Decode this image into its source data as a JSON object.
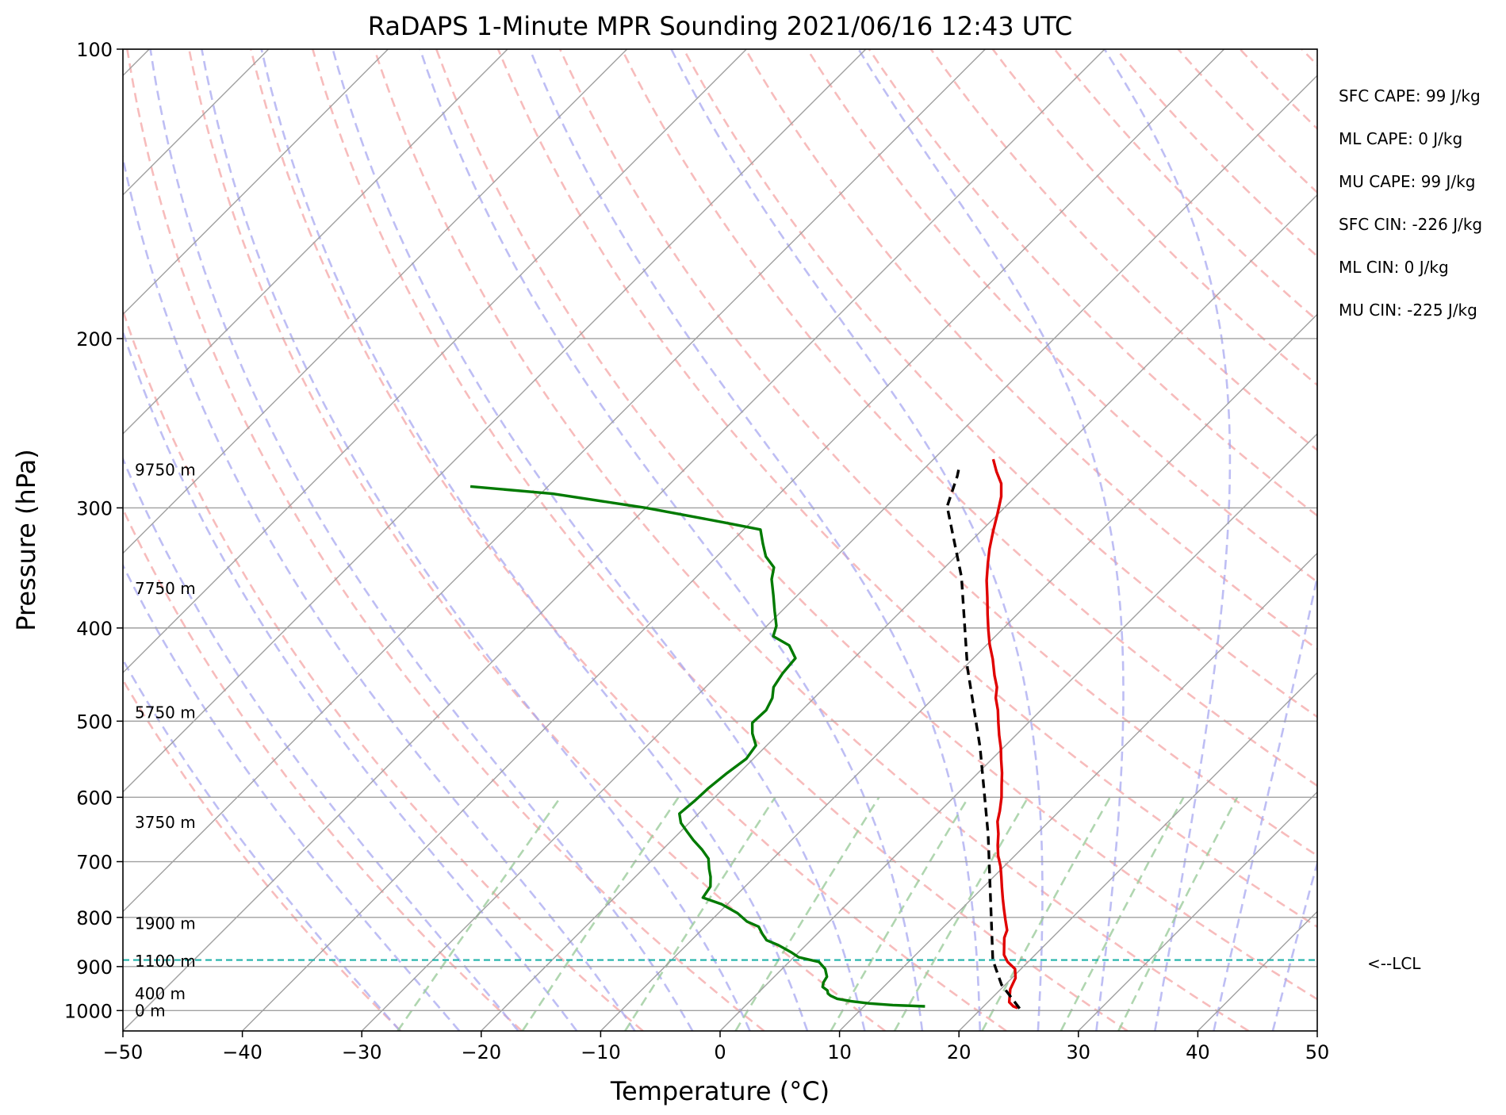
{
  "chart_data": {
    "type": "skew-t",
    "title": "RaDAPS 1-Minute MPR Sounding 2021/06/16 12:43 UTC",
    "xlabel": "Temperature (°C)",
    "ylabel": "Pressure (hPa)",
    "xlim": [
      -50,
      50
    ],
    "ylim": [
      1050,
      100
    ],
    "y_scale": "log",
    "x_ticks": [
      -50,
      -40,
      -30,
      -20,
      -10,
      0,
      10,
      20,
      30,
      40,
      50
    ],
    "x_tick_labels": [
      "−50",
      "−40",
      "−30",
      "−20",
      "−10",
      "0",
      "10",
      "20",
      "30",
      "40",
      "50"
    ],
    "y_ticks": [
      100,
      200,
      300,
      400,
      500,
      600,
      700,
      800,
      900,
      1000
    ],
    "y_tick_labels": [
      "100",
      "200",
      "300",
      "400",
      "500",
      "600",
      "700",
      "800",
      "900",
      "1000"
    ],
    "grid": true,
    "isotherms_skewed": true,
    "background_lines": {
      "dry_adiabats": "dashed light red",
      "moist_adiabats": "dashed light blue",
      "mixing_ratio_lines": "dashed light green"
    },
    "colors": {
      "temperature": "#e00000",
      "dewpoint": "#007a00",
      "parcel": "#000000",
      "lcl": "#20b2aa",
      "dry_adiabat": "#f4a0a0",
      "moist_adiabat": "#a8a8f0",
      "mixing_ratio": "#9ccc9c",
      "isotherm": "#a0a0a0"
    },
    "series": [
      {
        "name": "Temperature",
        "points": [
          [
            23.0,
            994
          ],
          [
            22.5,
            990
          ],
          [
            21.8,
            980
          ],
          [
            21.3,
            965
          ],
          [
            20.8,
            950
          ],
          [
            20.3,
            925
          ],
          [
            19.5,
            905
          ],
          [
            18.3,
            890
          ],
          [
            17.4,
            875
          ],
          [
            16.6,
            855
          ],
          [
            16.0,
            840
          ],
          [
            15.6,
            825
          ],
          [
            14.6,
            805
          ],
          [
            13.6,
            785
          ],
          [
            12.6,
            765
          ],
          [
            11.6,
            745
          ],
          [
            10.6,
            725
          ],
          [
            9.7,
            708
          ],
          [
            8.6,
            690
          ],
          [
            7.7,
            673
          ],
          [
            6.8,
            655
          ],
          [
            5.7,
            636
          ],
          [
            5.0,
            620
          ],
          [
            4.0,
            600
          ],
          [
            3.0,
            583
          ],
          [
            2.0,
            566
          ],
          [
            0.8,
            548
          ],
          [
            -0.2,
            533
          ],
          [
            -1.4,
            517
          ],
          [
            -2.5,
            502
          ],
          [
            -3.6,
            487
          ],
          [
            -4.8,
            473
          ],
          [
            -5.6,
            461
          ],
          [
            -6.8,
            448
          ],
          [
            -8.3,
            431
          ],
          [
            -9.8,
            416
          ],
          [
            -11.1,
            402
          ],
          [
            -12.5,
            387
          ],
          [
            -13.9,
            372
          ],
          [
            -15.4,
            357
          ],
          [
            -16.7,
            343
          ],
          [
            -17.8,
            331
          ],
          [
            -19.0,
            317
          ],
          [
            -20.1,
            304
          ],
          [
            -21.2,
            292
          ],
          [
            -22.3,
            283
          ],
          [
            -23.7,
            275
          ],
          [
            -25.0,
            267
          ]
        ]
      },
      {
        "name": "Dewpoint",
        "points": [
          [
            15.1,
            990
          ],
          [
            12.3,
            987
          ],
          [
            10.2,
            983
          ],
          [
            8.5,
            978
          ],
          [
            7.1,
            972
          ],
          [
            6.3,
            965
          ],
          [
            5.9,
            960
          ],
          [
            5.6,
            953
          ],
          [
            4.9,
            945
          ],
          [
            4.6,
            935
          ],
          [
            4.4,
            922
          ],
          [
            3.6,
            905
          ],
          [
            2.5,
            890
          ],
          [
            0.4,
            880
          ],
          [
            -0.6,
            870
          ],
          [
            -2.3,
            855
          ],
          [
            -3.7,
            845
          ],
          [
            -4.6,
            832
          ],
          [
            -5.5,
            818
          ],
          [
            -6.9,
            808
          ],
          [
            -8.4,
            792
          ],
          [
            -10.5,
            775
          ],
          [
            -12.6,
            763
          ],
          [
            -12.9,
            743
          ],
          [
            -13.7,
            726
          ],
          [
            -14.5,
            712
          ],
          [
            -15.4,
            695
          ],
          [
            -16.7,
            680
          ],
          [
            -18.2,
            665
          ],
          [
            -19.4,
            652
          ],
          [
            -20.7,
            638
          ],
          [
            -21.6,
            624
          ],
          [
            -21.4,
            606
          ],
          [
            -21.3,
            587
          ],
          [
            -21.0,
            566
          ],
          [
            -20.6,
            547
          ],
          [
            -20.9,
            530
          ],
          [
            -22.2,
            515
          ],
          [
            -23.1,
            502
          ],
          [
            -23.0,
            487
          ],
          [
            -23.5,
            473
          ],
          [
            -24.3,
            461
          ],
          [
            -24.7,
            446
          ],
          [
            -24.9,
            430
          ],
          [
            -26.5,
            417
          ],
          [
            -28.6,
            408
          ],
          [
            -29.2,
            398
          ],
          [
            -30.6,
            384
          ],
          [
            -32.0,
            370
          ],
          [
            -33.5,
            356
          ],
          [
            -34.3,
            346
          ],
          [
            -35.9,
            337
          ],
          [
            -37.2,
            327
          ],
          [
            -38.6,
            316
          ],
          [
            -42.0,
            311
          ],
          [
            -50.0,
            300
          ],
          [
            -59.0,
            290
          ],
          [
            -66.5,
            285
          ]
        ]
      },
      {
        "name": "Parcel",
        "points": [
          [
            23.2,
            995
          ],
          [
            19.7,
            940
          ],
          [
            16.9,
            886
          ],
          [
            6.0,
            656
          ],
          [
            -2.0,
            532
          ],
          [
            -9.7,
            440
          ],
          [
            -17.8,
            354
          ],
          [
            -24.9,
            299
          ],
          [
            -26.6,
            278
          ],
          [
            -27.2,
            272
          ]
        ]
      }
    ],
    "lcl": {
      "pressure": 886,
      "label": "<--LCL"
    },
    "height_labels": [
      {
        "label": "0 m",
        "pressure": 1000
      },
      {
        "label": "400 m",
        "pressure": 960
      },
      {
        "label": "1100 m",
        "pressure": 888
      },
      {
        "label": "1900 m",
        "pressure": 812
      },
      {
        "label": "3750 m",
        "pressure": 637
      },
      {
        "label": "5750 m",
        "pressure": 490
      },
      {
        "label": "7750 m",
        "pressure": 364
      },
      {
        "label": "9750 m",
        "pressure": 274
      }
    ],
    "annotations": [
      "SFC CAPE: 99 J/kg",
      "ML CAPE: 0 J/kg",
      "MU CAPE: 99 J/kg",
      "SFC CIN: -226 J/kg",
      "ML CIN: 0 J/kg",
      "MU CIN: -225 J/kg"
    ]
  }
}
